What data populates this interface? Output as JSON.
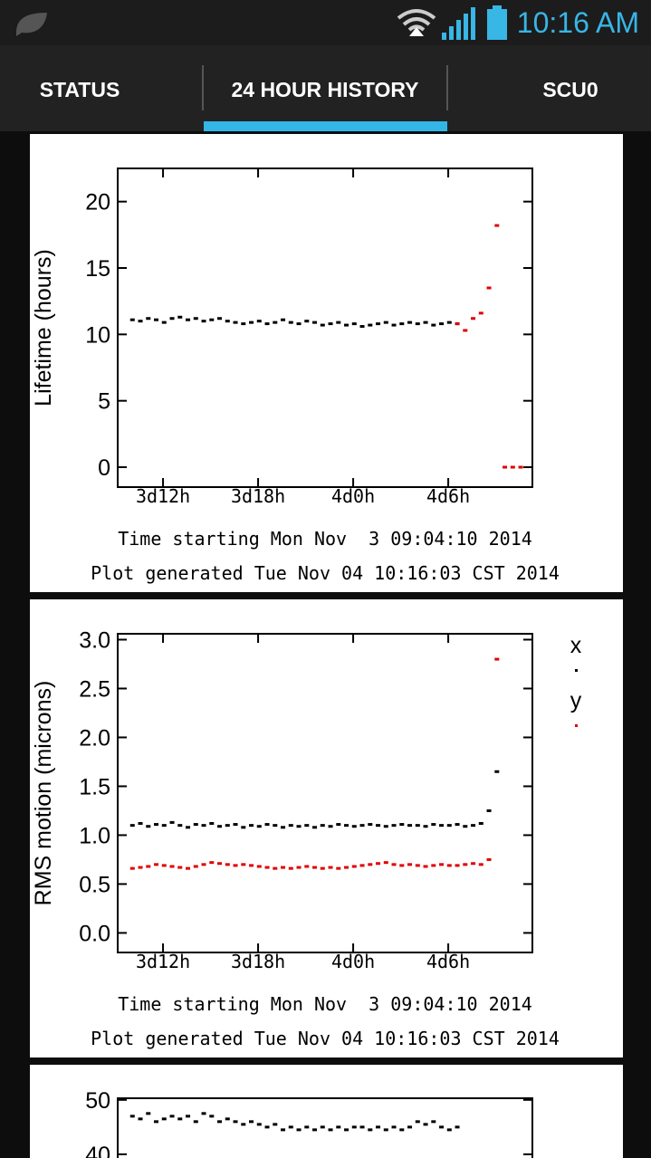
{
  "status_bar": {
    "time": "10:16 AM"
  },
  "tabs": [
    "STATUS",
    "24 HOUR HISTORY",
    "SCU0"
  ],
  "chart_data": [
    {
      "type": "scatter",
      "ylabel": "Lifetime (hours)",
      "xlabel": "Time starting Mon Nov  3 09:04:10 2014",
      "note": "Plot generated Tue Nov 04 10:16:03 CST 2014",
      "xlim": [
        0.07,
        26.24
      ],
      "ylim": [
        -1.5,
        22.5
      ],
      "xticks": [
        {
          "value": 2.93,
          "label": "3d12h"
        },
        {
          "value": 8.93,
          "label": "3d18h"
        },
        {
          "value": 14.93,
          "label": "4d0h"
        },
        {
          "value": 20.93,
          "label": "4d6h"
        }
      ],
      "yticks": [
        0,
        5,
        10,
        15,
        20
      ],
      "x": [
        1,
        1.5,
        2,
        2.5,
        3,
        3.5,
        4,
        4.5,
        5,
        5.5,
        6,
        6.5,
        7,
        7.5,
        8,
        8.5,
        9,
        9.5,
        10,
        10.5,
        11,
        11.5,
        12,
        12.5,
        13,
        13.5,
        14,
        14.5,
        15,
        15.5,
        16,
        16.5,
        17,
        17.5,
        18,
        18.5,
        19,
        19.5,
        20,
        20.5,
        21,
        21.5,
        22,
        22.5,
        23,
        23.5,
        24,
        24.5,
        25,
        25.5
      ],
      "series": [
        {
          "color": "#000000",
          "values": [
            11.1,
            11.0,
            11.2,
            11.1,
            10.9,
            11.2,
            11.3,
            11.1,
            11.2,
            11.0,
            11.1,
            11.2,
            11.0,
            10.9,
            10.8,
            10.9,
            11.0,
            10.8,
            10.9,
            11.1,
            10.9,
            10.8,
            11.0,
            10.9,
            10.7,
            10.8,
            10.9,
            10.7,
            10.8,
            10.6,
            10.7,
            10.8,
            10.9,
            10.7,
            10.8,
            10.9,
            10.8,
            10.9,
            10.7,
            10.8,
            10.9,
            10.8,
            null,
            null,
            null,
            null,
            null,
            null,
            null,
            null
          ]
        },
        {
          "color": "#e00000",
          "values": [
            null,
            null,
            null,
            null,
            null,
            null,
            null,
            null,
            null,
            null,
            null,
            null,
            null,
            null,
            null,
            null,
            null,
            null,
            null,
            null,
            null,
            null,
            null,
            null,
            null,
            null,
            null,
            null,
            null,
            null,
            null,
            null,
            null,
            null,
            null,
            null,
            null,
            null,
            null,
            null,
            null,
            10.8,
            10.3,
            11.2,
            11.6,
            13.5,
            18.2,
            0,
            0,
            0
          ]
        }
      ]
    },
    {
      "type": "scatter",
      "ylabel": "RMS motion (microns)",
      "xlabel": "Time starting Mon Nov  3 09:04:10 2014",
      "note": "Plot generated Tue Nov 04 10:16:03 CST 2014",
      "xlim": [
        0.07,
        26.24
      ],
      "ylim": [
        -0.2,
        3.06
      ],
      "xticks": [
        {
          "value": 2.93,
          "label": "3d12h"
        },
        {
          "value": 8.93,
          "label": "3d18h"
        },
        {
          "value": 14.93,
          "label": "4d0h"
        },
        {
          "value": 20.93,
          "label": "4d6h"
        }
      ],
      "yticks": [
        {
          "value": 0,
          "label": "0.0"
        },
        0.5,
        {
          "value": 1,
          "label": "1.0"
        },
        1.5,
        {
          "value": 2,
          "label": "2.0"
        },
        2.5,
        {
          "value": 3,
          "label": "3.0"
        }
      ],
      "x": [
        1,
        1.5,
        2,
        2.5,
        3,
        3.5,
        4,
        4.5,
        5,
        5.5,
        6,
        6.5,
        7,
        7.5,
        8,
        8.5,
        9,
        9.5,
        10,
        10.5,
        11,
        11.5,
        12,
        12.5,
        13,
        13.5,
        14,
        14.5,
        15,
        15.5,
        16,
        16.5,
        17,
        17.5,
        18,
        18.5,
        19,
        19.5,
        20,
        20.5,
        21,
        21.5,
        22,
        22.5,
        23,
        23.5,
        24,
        24.5,
        25,
        25.5
      ],
      "series": [
        {
          "name": "x",
          "color": "#000000",
          "values": [
            1.1,
            1.12,
            1.09,
            1.11,
            1.1,
            1.13,
            1.1,
            1.08,
            1.11,
            1.1,
            1.12,
            1.09,
            1.1,
            1.11,
            1.08,
            1.1,
            1.09,
            1.11,
            1.1,
            1.08,
            1.1,
            1.09,
            1.1,
            1.08,
            1.1,
            1.09,
            1.11,
            1.1,
            1.09,
            1.1,
            1.11,
            1.1,
            1.09,
            1.1,
            1.11,
            1.1,
            1.1,
            1.09,
            1.11,
            1.1,
            1.1,
            1.11,
            1.09,
            1.1,
            1.12,
            1.25,
            1.65,
            null,
            null,
            null
          ]
        },
        {
          "name": "y",
          "color": "#e00000",
          "values": [
            0.66,
            0.67,
            0.68,
            0.7,
            0.69,
            0.68,
            0.67,
            0.66,
            0.68,
            0.7,
            0.72,
            0.71,
            0.7,
            0.69,
            0.7,
            0.69,
            0.68,
            0.67,
            0.66,
            0.67,
            0.66,
            0.67,
            0.68,
            0.67,
            0.66,
            0.67,
            0.66,
            0.67,
            0.68,
            0.69,
            0.7,
            0.71,
            0.72,
            0.7,
            0.69,
            0.7,
            0.69,
            0.68,
            0.69,
            0.7,
            0.69,
            0.69,
            0.7,
            0.71,
            0.7,
            0.75,
            2.8,
            null,
            null,
            null
          ]
        }
      ]
    },
    {
      "type": "scatter",
      "xlim": [
        0.07,
        26.24
      ],
      "ylim": [
        30,
        50.3
      ],
      "yticks": [
        40,
        50
      ],
      "x": [
        1,
        1.5,
        2,
        2.5,
        3,
        3.5,
        4,
        4.5,
        5,
        5.5,
        6,
        6.5,
        7,
        7.5,
        8,
        8.5,
        9,
        9.5,
        10,
        10.5,
        11,
        11.5,
        12,
        12.5,
        13,
        13.5,
        14,
        14.5,
        15,
        15.5,
        16,
        16.5,
        17,
        17.5,
        18,
        18.5,
        19,
        19.5,
        20,
        20.5,
        21,
        21.5
      ],
      "series": [
        {
          "color": "#000000",
          "values": [
            47,
            46.5,
            47.5,
            46,
            46.5,
            47,
            46.5,
            47,
            46,
            47.5,
            47,
            46,
            46.5,
            46,
            45.5,
            46,
            45.5,
            45,
            45.5,
            44.5,
            45,
            44.5,
            45,
            44.5,
            45,
            44.5,
            45,
            44.5,
            45,
            45,
            44.5,
            45,
            44.5,
            45,
            44.5,
            45,
            46,
            45.5,
            46,
            45,
            44.5,
            45
          ]
        }
      ]
    }
  ]
}
